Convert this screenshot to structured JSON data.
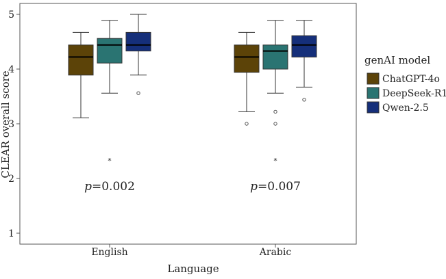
{
  "chart_data": {
    "type": "box",
    "xlabel": "Language",
    "ylabel": "CLEAR overall score",
    "ylim": [
      0.8,
      5.2
    ],
    "yticks": [
      1,
      2,
      3,
      4,
      5
    ],
    "categories": [
      "English",
      "Arabic"
    ],
    "legend": {
      "title": "genAI model",
      "position": "right"
    },
    "series": [
      {
        "name": "ChatGPT-4o",
        "color": "#5c4308",
        "boxes": [
          {
            "category": "English",
            "whisker_low": 3.11,
            "q1": 3.89,
            "median": 4.22,
            "q3": 4.44,
            "whisker_high": 4.67,
            "outliers": []
          },
          {
            "category": "Arabic",
            "whisker_low": 3.22,
            "q1": 3.94,
            "median": 4.22,
            "q3": 4.44,
            "whisker_high": 4.67,
            "outliers": [
              3.0
            ]
          }
        ]
      },
      {
        "name": "DeepSeek-R1",
        "color": "#2a7472",
        "boxes": [
          {
            "category": "English",
            "whisker_low": 3.56,
            "q1": 4.11,
            "median": 4.44,
            "q3": 4.56,
            "whisker_high": 4.89,
            "outliers": [],
            "extremes": [
              2.33
            ]
          },
          {
            "category": "Arabic",
            "whisker_low": 3.56,
            "q1": 4.0,
            "median": 4.33,
            "q3": 4.44,
            "whisker_high": 4.89,
            "outliers": [
              3.22,
              3.0
            ],
            "extremes": [
              2.33
            ]
          }
        ]
      },
      {
        "name": "Qwen-2.5",
        "color": "#152f7a",
        "boxes": [
          {
            "category": "English",
            "whisker_low": 3.89,
            "q1": 4.33,
            "median": 4.44,
            "q3": 4.67,
            "whisker_high": 5.0,
            "outliers": [
              3.56
            ]
          },
          {
            "category": "Arabic",
            "whisker_low": 3.67,
            "q1": 4.22,
            "median": 4.44,
            "q3": 4.61,
            "whisker_high": 4.89,
            "outliers": [
              3.44
            ]
          }
        ]
      }
    ],
    "annotations": [
      {
        "category": "English",
        "prefix": "p",
        "text": "=0.002",
        "y": 2.0
      },
      {
        "category": "Arabic",
        "prefix": "p",
        "text": "=0.007",
        "y": 2.0
      }
    ]
  }
}
